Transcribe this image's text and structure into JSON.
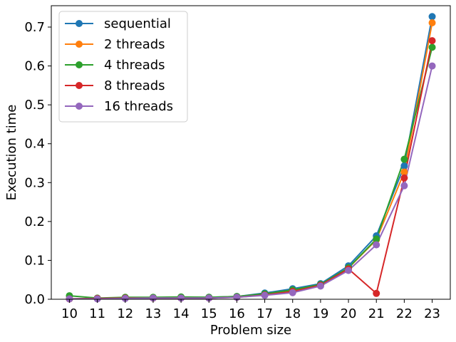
{
  "chart_data": {
    "type": "line",
    "title": "",
    "xlabel": "Problem size",
    "ylabel": "Execution time",
    "x": [
      10,
      11,
      12,
      13,
      14,
      15,
      16,
      17,
      18,
      19,
      20,
      21,
      22,
      23
    ],
    "xticks": [
      "10",
      "11",
      "12",
      "13",
      "14",
      "15",
      "16",
      "17",
      "18",
      "19",
      "20",
      "21",
      "22",
      "23"
    ],
    "ylim": [
      0.0,
      0.755
    ],
    "yticks": [
      0.0,
      0.1,
      0.2,
      0.3,
      0.4,
      0.5,
      0.6,
      0.7
    ],
    "ytick_labels": [
      "0.0",
      "0.1",
      "0.2",
      "0.3",
      "0.4",
      "0.5",
      "0.6",
      "0.7"
    ],
    "grid": false,
    "legend_position": "top-left",
    "series": [
      {
        "name": "sequential",
        "color": "#1f77b4",
        "values": [
          0.001,
          0.002,
          0.003,
          0.004,
          0.005,
          0.005,
          0.007,
          0.016,
          0.027,
          0.04,
          0.086,
          0.163,
          0.343,
          0.727
        ]
      },
      {
        "name": "2 threads",
        "color": "#ff7f0e",
        "values": [
          0.001,
          0.002,
          0.003,
          0.003,
          0.004,
          0.004,
          0.006,
          0.013,
          0.023,
          0.037,
          0.08,
          0.153,
          0.327,
          0.711
        ]
      },
      {
        "name": "4 threads",
        "color": "#2ca02c",
        "values": [
          0.009,
          0.003,
          0.005,
          0.005,
          0.006,
          0.005,
          0.007,
          0.014,
          0.024,
          0.038,
          0.081,
          0.155,
          0.36,
          0.648
        ]
      },
      {
        "name": "8 threads",
        "color": "#d62728",
        "values": [
          0.001,
          0.002,
          0.003,
          0.003,
          0.003,
          0.003,
          0.005,
          0.011,
          0.02,
          0.036,
          0.078,
          0.015,
          0.312,
          0.665
        ]
      },
      {
        "name": "16 threads",
        "color": "#9467bd",
        "values": [
          0.001,
          0.001,
          0.002,
          0.003,
          0.003,
          0.003,
          0.005,
          0.01,
          0.017,
          0.034,
          0.074,
          0.14,
          0.292,
          0.6
        ]
      }
    ]
  }
}
